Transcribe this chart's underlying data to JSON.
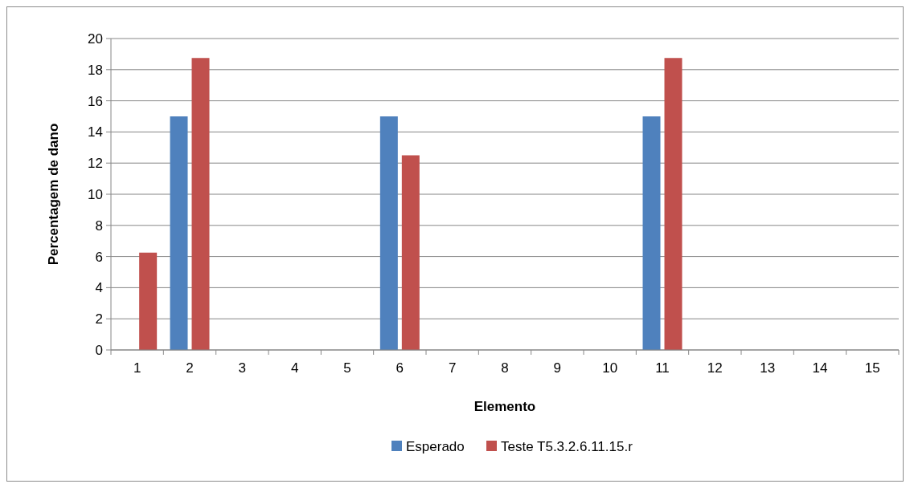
{
  "chart_data": {
    "type": "bar",
    "xlabel": "Elemento",
    "ylabel": "Percentagem de dano",
    "categories": [
      "1",
      "2",
      "3",
      "4",
      "5",
      "6",
      "7",
      "8",
      "9",
      "10",
      "11",
      "12",
      "13",
      "14",
      "15"
    ],
    "series": [
      {
        "name": "Esperado",
        "color": "#4f81bd",
        "values": [
          0,
          15,
          0,
          0,
          0,
          15,
          0,
          0,
          0,
          0,
          15,
          0,
          0,
          0,
          0
        ]
      },
      {
        "name": "Teste T5.3.2.6.11.15.r",
        "color": "#c0504d",
        "values": [
          6.25,
          18.75,
          0,
          0,
          0,
          12.5,
          0,
          0,
          0,
          0,
          18.75,
          0,
          0,
          0,
          0
        ]
      }
    ],
    "ylim": [
      0,
      20
    ],
    "yticks": [
      0,
      2,
      4,
      6,
      8,
      10,
      12,
      14,
      16,
      18,
      20
    ],
    "grid": "y",
    "legend": "bottom"
  }
}
